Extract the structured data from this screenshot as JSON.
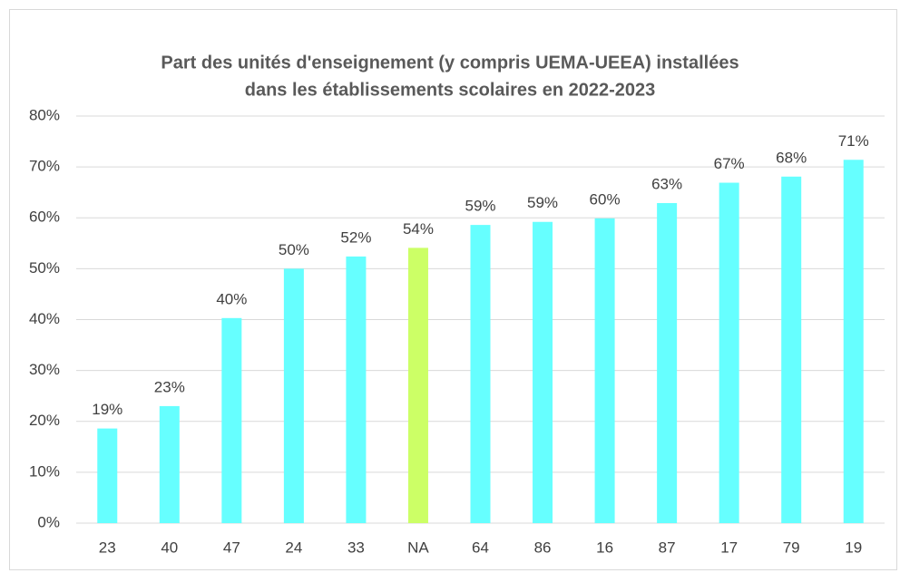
{
  "chart_data": {
    "type": "bar",
    "title": [
      "Part des unités d'enseignement (y compris UEMA-UEEA) installées",
      "dans les établissements scolaires en 2022-2023"
    ],
    "categories": [
      "23",
      "40",
      "47",
      "24",
      "33",
      "NA",
      "64",
      "86",
      "16",
      "87",
      "17",
      "79",
      "19"
    ],
    "values": [
      18.6,
      23,
      40.3,
      50,
      52.4,
      54.1,
      58.6,
      59.2,
      59.9,
      62.9,
      66.9,
      68.1,
      71.4
    ],
    "value_labels": [
      "19%",
      "23%",
      "40%",
      "50%",
      "52%",
      "54%",
      "59%",
      "59%",
      "60%",
      "63%",
      "67%",
      "68%",
      "71%"
    ],
    "colors": [
      "#66ffff",
      "#66ffff",
      "#66ffff",
      "#66ffff",
      "#66ffff",
      "#ccff66",
      "#66ffff",
      "#66ffff",
      "#66ffff",
      "#66ffff",
      "#66ffff",
      "#66ffff",
      "#66ffff"
    ],
    "ylim": [
      0,
      80
    ],
    "yticks": [
      {
        "value": 0,
        "label": "0%"
      },
      {
        "value": 10,
        "label": "10%"
      },
      {
        "value": 20,
        "label": "20%"
      },
      {
        "value": 30,
        "label": "30%"
      },
      {
        "value": 40,
        "label": "40%"
      },
      {
        "value": 50,
        "label": "50%"
      },
      {
        "value": 60,
        "label": "60%"
      },
      {
        "value": 70,
        "label": "70%"
      },
      {
        "value": 80,
        "label": "80%"
      }
    ],
    "grid": true
  }
}
